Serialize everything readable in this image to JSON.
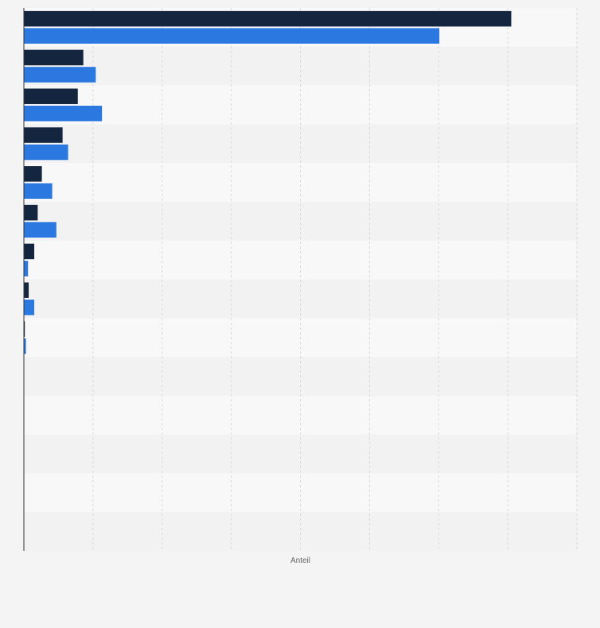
{
  "chart_data": {
    "type": "bar",
    "orientation": "horizontal",
    "xlabel": "Anteil",
    "ylabel": "",
    "xlim": [
      0,
      8
    ],
    "grid": true,
    "legend": "none",
    "categories": [
      "",
      "",
      "",
      "",
      "",
      "",
      "",
      "",
      "",
      "",
      "",
      "",
      "",
      ""
    ],
    "series": [
      {
        "color": "#14253f",
        "values": [
          7.05,
          0.86,
          0.78,
          0.56,
          0.26,
          0.2,
          0.15,
          0.07,
          0.01,
          0,
          0,
          0,
          0,
          0
        ]
      },
      {
        "color": "#2b78e0",
        "values": [
          6.01,
          1.04,
          1.13,
          0.64,
          0.41,
          0.47,
          0.06,
          0.15,
          0.03,
          0,
          0,
          0,
          0,
          0
        ]
      }
    ],
    "colors": {
      "background": "#f4f4f4",
      "band_light": "#f8f8f8",
      "band_dark": "#f2f2f2",
      "gridline": "#d9d9d9",
      "axis": "#333333"
    }
  }
}
